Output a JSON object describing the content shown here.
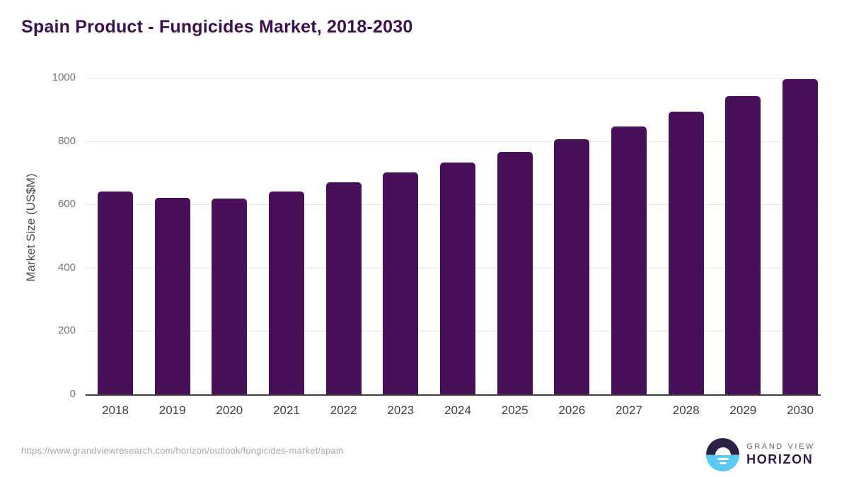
{
  "chart": {
    "title": "Spain Product - Fungicides Market, 2018-2030",
    "ylabel": "Market Size (US$M)"
  },
  "chart_data": {
    "type": "bar",
    "title": "Spain Product - Fungicides Market, 2018-2030",
    "xlabel": "",
    "ylabel": "Market Size (US$M)",
    "categories": [
      "2018",
      "2019",
      "2020",
      "2021",
      "2022",
      "2023",
      "2024",
      "2025",
      "2026",
      "2027",
      "2028",
      "2029",
      "2030"
    ],
    "values": [
      641,
      621,
      618,
      641,
      669,
      702,
      732,
      766,
      806,
      846,
      892,
      941,
      996
    ],
    "ylim": [
      0,
      1000
    ],
    "yticks": [
      0,
      200,
      400,
      600,
      800,
      1000
    ],
    "grid": true,
    "legend": false,
    "bar_color": "#481059"
  },
  "colors": {
    "title": "#3d1150",
    "bar": "#481059",
    "axis_text": "#3f3f3f",
    "ytick_text": "#757575",
    "gridline": "#e8e8e8",
    "baseline": "#3f3f3f",
    "url_text": "#a6a6a6",
    "logo_dark": "#2b2045",
    "logo_blue": "#5bc9f2"
  },
  "footer": {
    "url": "https://www.grandviewresearch.com/horizon/outlook/fungicides-market/spain",
    "brand_top": "GRAND VIEW",
    "brand_bottom": "HORIZON"
  }
}
